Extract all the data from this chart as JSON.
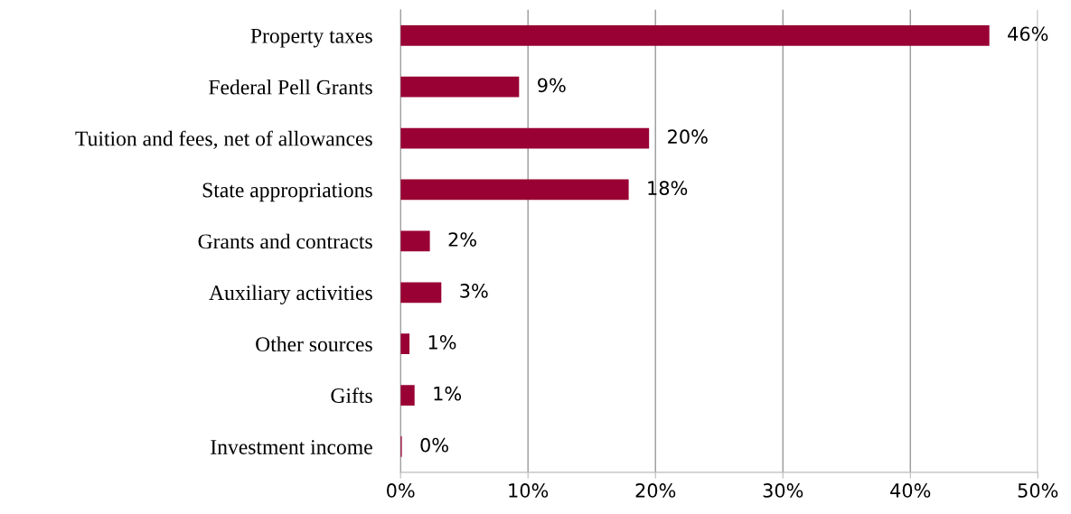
{
  "chart_data": {
    "type": "bar",
    "orientation": "horizontal",
    "categories": [
      "Property taxes",
      "Federal Pell Grants",
      "Tuition and fees, net of allowances",
      "State appropriations",
      "Grants and contracts",
      "Auxiliary activities",
      "Other sources",
      "Gifts",
      "Investment income"
    ],
    "values": [
      46.2,
      9.3,
      19.5,
      17.9,
      2.3,
      3.2,
      0.7,
      1.1,
      0.1
    ],
    "value_labels": [
      "46%",
      "9%",
      "20%",
      "18%",
      "2%",
      "3%",
      "1%",
      "1%",
      "0%"
    ],
    "color": "#990033",
    "xlim": [
      0,
      50
    ],
    "xticks": [
      {
        "value": 0,
        "label": "0%"
      },
      {
        "value": 10,
        "label": "10%"
      },
      {
        "value": 20,
        "label": "20%"
      },
      {
        "value": 30,
        "label": "30%"
      },
      {
        "value": 40,
        "label": "40%"
      },
      {
        "value": 50,
        "label": "50%"
      }
    ],
    "grid": "x",
    "legend": false
  }
}
